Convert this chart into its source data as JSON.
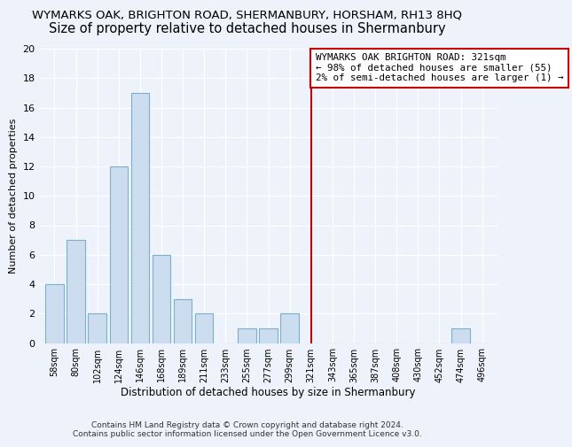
{
  "title": "WYMARKS OAK, BRIGHTON ROAD, SHERMANBURY, HORSHAM, RH13 8HQ",
  "subtitle": "Size of property relative to detached houses in Shermanbury",
  "xlabel": "Distribution of detached houses by size in Shermanbury",
  "ylabel": "Number of detached properties",
  "bar_labels": [
    "58sqm",
    "80sqm",
    "102sqm",
    "124sqm",
    "146sqm",
    "168sqm",
    "189sqm",
    "211sqm",
    "233sqm",
    "255sqm",
    "277sqm",
    "299sqm",
    "321sqm",
    "343sqm",
    "365sqm",
    "387sqm",
    "408sqm",
    "430sqm",
    "452sqm",
    "474sqm",
    "496sqm"
  ],
  "bar_values": [
    4,
    7,
    2,
    12,
    17,
    6,
    3,
    2,
    0,
    1,
    1,
    2,
    0,
    0,
    0,
    0,
    0,
    0,
    0,
    1,
    0
  ],
  "bar_color": "#ccddf0",
  "bar_edge_color": "#7aafcf",
  "vline_index": 12,
  "vline_color": "#cc0000",
  "ylim": [
    0,
    20
  ],
  "yticks": [
    0,
    2,
    4,
    6,
    8,
    10,
    12,
    14,
    16,
    18,
    20
  ],
  "annotation_text": "WYMARKS OAK BRIGHTON ROAD: 321sqm\n← 98% of detached houses are smaller (55)\n2% of semi-detached houses are larger (1) →",
  "footer": "Contains HM Land Registry data © Crown copyright and database right 2024.\nContains public sector information licensed under the Open Government Licence v3.0.",
  "title_fontsize": 9.5,
  "subtitle_fontsize": 10.5,
  "xlabel_fontsize": 8.5,
  "ylabel_fontsize": 8,
  "bg_color": "#eef2fb"
}
